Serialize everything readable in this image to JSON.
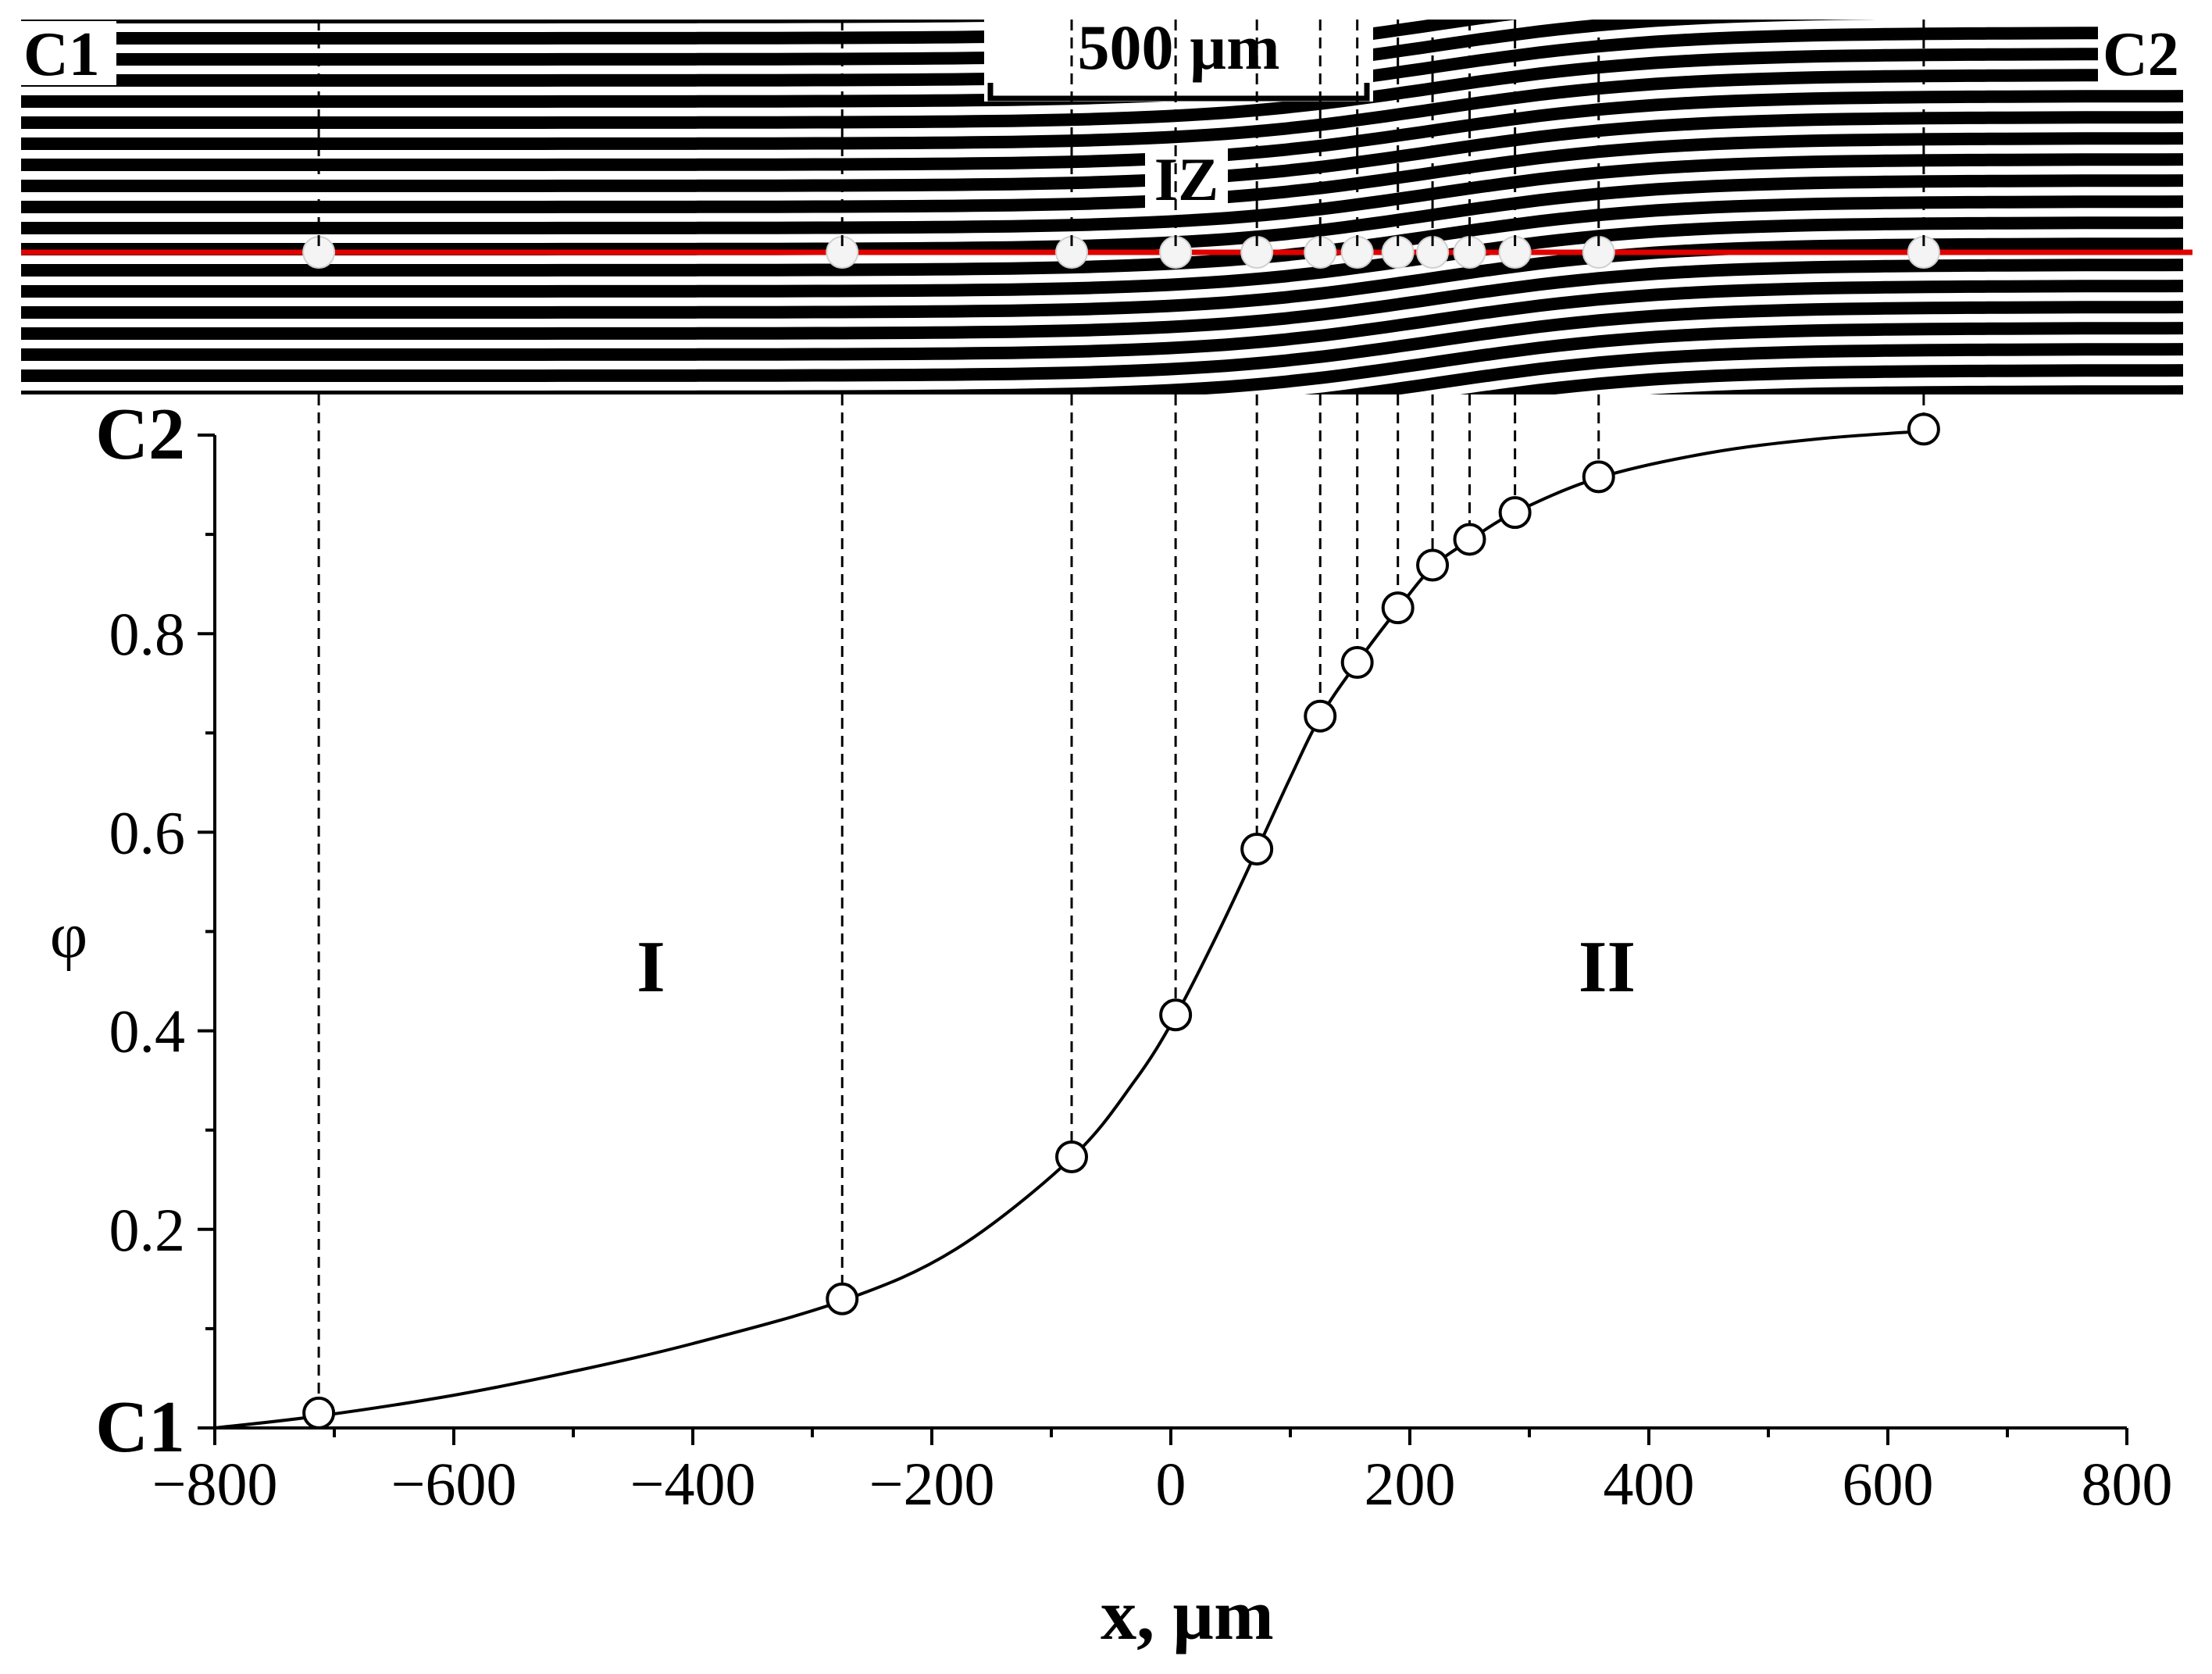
{
  "micrograph": {
    "left_label": "C1",
    "right_label": "C2",
    "scale_bar": "500 µm",
    "zone_label": "IZ"
  },
  "chart_data": {
    "type": "scatter",
    "title": "",
    "xlabel": "x, µm",
    "ylabel": "φ",
    "xlim": [
      -800,
      800
    ],
    "ylim": [
      0,
      1
    ],
    "grid": false,
    "x_ticks": [
      -800,
      -600,
      -400,
      -200,
      0,
      200,
      400,
      600,
      800
    ],
    "x_tick_labels": [
      "−800",
      "−600",
      "−400",
      "−200",
      "0",
      "200",
      "400",
      "600",
      "800"
    ],
    "y_ticks": [
      0,
      0.2,
      0.4,
      0.6,
      0.8,
      1.0
    ],
    "y_tick_labels": [
      "C1",
      "0.2",
      "0.4",
      "0.6",
      "0.8",
      "C2"
    ],
    "regions": [
      {
        "label": "I",
        "x": -435,
        "y": 0.44
      },
      {
        "label": "II",
        "x": 365,
        "y": 0.44
      }
    ],
    "series": [
      {
        "name": "measured",
        "marker": "open-circle",
        "points": [
          {
            "x": -713,
            "y": 0.015
          },
          {
            "x": -275,
            "y": 0.13
          },
          {
            "x": -83,
            "y": 0.273
          },
          {
            "x": 4,
            "y": 0.416
          },
          {
            "x": 72,
            "y": 0.583
          },
          {
            "x": 125,
            "y": 0.717
          },
          {
            "x": 156,
            "y": 0.771
          },
          {
            "x": 190,
            "y": 0.826
          },
          {
            "x": 219,
            "y": 0.869
          },
          {
            "x": 250,
            "y": 0.895
          },
          {
            "x": 288,
            "y": 0.922
          },
          {
            "x": 358,
            "y": 0.958
          },
          {
            "x": 630,
            "y": 1.006
          }
        ]
      },
      {
        "name": "fit",
        "style": "line",
        "points": [
          {
            "x": -800,
            "y": 0.0
          },
          {
            "x": -713,
            "y": 0.012
          },
          {
            "x": -600,
            "y": 0.033
          },
          {
            "x": -500,
            "y": 0.057
          },
          {
            "x": -400,
            "y": 0.085
          },
          {
            "x": -275,
            "y": 0.128
          },
          {
            "x": -180,
            "y": 0.18
          },
          {
            "x": -83,
            "y": 0.272
          },
          {
            "x": -30,
            "y": 0.35
          },
          {
            "x": 4,
            "y": 0.415
          },
          {
            "x": 40,
            "y": 0.5
          },
          {
            "x": 72,
            "y": 0.582
          },
          {
            "x": 100,
            "y": 0.655
          },
          {
            "x": 125,
            "y": 0.716
          },
          {
            "x": 156,
            "y": 0.771
          },
          {
            "x": 190,
            "y": 0.825
          },
          {
            "x": 219,
            "y": 0.867
          },
          {
            "x": 250,
            "y": 0.894
          },
          {
            "x": 288,
            "y": 0.922
          },
          {
            "x": 358,
            "y": 0.957
          },
          {
            "x": 450,
            "y": 0.982
          },
          {
            "x": 540,
            "y": 0.996
          },
          {
            "x": 630,
            "y": 1.004
          }
        ]
      }
    ]
  },
  "colors": {
    "profile_line": "#e00000",
    "background": "#ffffff",
    "ink": "#000000"
  }
}
